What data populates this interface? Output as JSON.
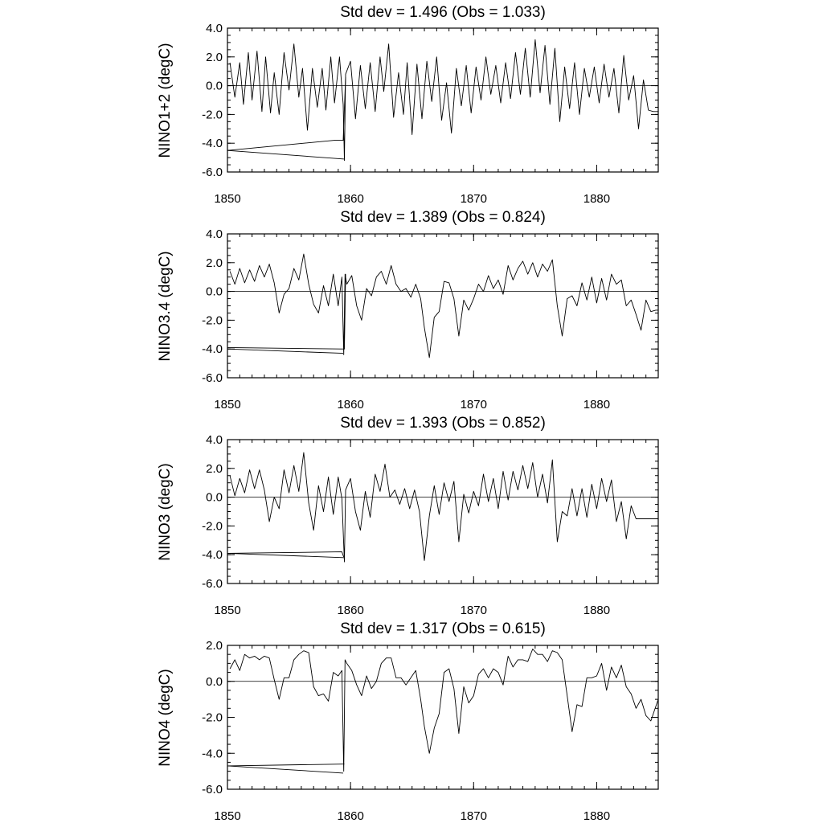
{
  "chart_data": [
    {
      "type": "line",
      "title": "Std dev = 1.496 (Obs = 1.033)",
      "ylabel": "NINO1+2 (degC)",
      "xlim": [
        1850,
        1885
      ],
      "ylim": [
        -6.0,
        4.0
      ],
      "x_ticks": [
        1850,
        1860,
        1870,
        1880
      ],
      "x_tick_labels": [
        "1850",
        "1860",
        "1870",
        "1880"
      ],
      "y_ticks": [
        4.0,
        2.0,
        0.0,
        -2.0,
        -4.0,
        -6.0
      ],
      "y_tick_labels": [
        "4.0",
        "2.0",
        "0.0",
        "-2.0",
        "-4.0",
        "-6.0"
      ],
      "zero_line": 0,
      "series": [
        {
          "x": [
            1850.2,
            1850.6,
            1851.0,
            1851.3,
            1851.7,
            1852.0,
            1852.4,
            1852.8,
            1853.1,
            1853.5,
            1853.8,
            1854.2,
            1854.6,
            1855.0,
            1855.4,
            1855.8,
            1856.1,
            1856.5,
            1856.9,
            1857.3,
            1857.7,
            1858.0,
            1858.4,
            1858.7,
            1859.1,
            1859.4,
            1859.5,
            1859.6,
            1860.0,
            1860.4,
            1860.8,
            1861.2,
            1861.6,
            1862.0,
            1862.4,
            1862.7,
            1863.1,
            1863.5,
            1863.9,
            1864.3,
            1864.6,
            1865.0,
            1865.4,
            1865.8,
            1866.2,
            1866.6,
            1867.0,
            1867.4,
            1867.8,
            1868.2,
            1868.6,
            1869.0,
            1869.4,
            1869.8,
            1870.2,
            1870.6,
            1871.0,
            1871.4,
            1871.8,
            1872.2,
            1872.6,
            1873.0,
            1873.4,
            1873.8,
            1874.2,
            1874.6,
            1875.0,
            1875.4,
            1875.8,
            1876.2,
            1876.6,
            1877.0,
            1877.4,
            1877.8,
            1878.2,
            1878.6,
            1879.0,
            1879.4,
            1879.8,
            1880.2,
            1880.6,
            1881.0,
            1881.4,
            1881.8,
            1882.2,
            1882.6,
            1883.0,
            1883.4,
            1883.8,
            1884.2,
            1884.6,
            1885.0
          ],
          "y": [
            1.6,
            -0.8,
            1.6,
            -1.3,
            2.3,
            -1.0,
            2.4,
            -1.8,
            2.0,
            -1.9,
            0.9,
            -2.0,
            2.3,
            -0.3,
            2.9,
            -0.8,
            1.2,
            -3.1,
            1.2,
            -1.5,
            1.2,
            -1.7,
            2.0,
            -1.2,
            2.0,
            -1.3,
            -5.2,
            0.8,
            1.7,
            -2.3,
            1.4,
            -1.6,
            1.6,
            -1.8,
            2.0,
            -0.4,
            2.9,
            -2.2,
            0.9,
            -2.0,
            1.6,
            -3.4,
            1.5,
            -2.3,
            1.7,
            -1.1,
            2.0,
            -2.4,
            0.2,
            -3.3,
            1.2,
            -1.4,
            1.4,
            -1.9,
            1.3,
            -1.0,
            2.0,
            -0.6,
            1.4,
            -1.2,
            1.6,
            -0.9,
            2.3,
            -0.6,
            2.6,
            -0.8,
            3.2,
            -0.5,
            2.8,
            -1.3,
            2.6,
            -2.5,
            1.3,
            -1.6,
            1.6,
            -2.0,
            1.2,
            -0.8,
            1.3,
            -1.2,
            1.5,
            -0.8,
            1.2,
            -1.9,
            2.1,
            -1.0,
            0.7,
            -3.0,
            0.4,
            -1.7,
            -1.8,
            -1.8
          ]
        },
        {
          "x": [
            1850.0,
            1858.7,
            1859.4,
            1859.6
          ],
          "y": [
            -4.5,
            -3.8,
            -3.8,
            0.6
          ]
        },
        {
          "x": [
            1850.0,
            1859.5
          ],
          "y": [
            -4.5,
            -5.1
          ]
        }
      ]
    },
    {
      "type": "line",
      "title": "Std dev = 1.389 (Obs = 0.824)",
      "ylabel": "NINO3.4 (degC)",
      "xlim": [
        1850,
        1885
      ],
      "ylim": [
        -6.0,
        4.0
      ],
      "x_ticks": [
        1850,
        1860,
        1870,
        1880
      ],
      "x_tick_labels": [
        "1850",
        "1860",
        "1870",
        "1880"
      ],
      "y_ticks": [
        4.0,
        2.0,
        0.0,
        -2.0,
        -4.0,
        -6.0
      ],
      "y_tick_labels": [
        "4.0",
        "2.0",
        "0.0",
        "-2.0",
        "-4.0",
        "-6.0"
      ],
      "zero_line": 0,
      "series": [
        {
          "x": [
            1850.2,
            1850.6,
            1851.0,
            1851.4,
            1851.8,
            1852.2,
            1852.6,
            1853.0,
            1853.4,
            1853.8,
            1854.2,
            1854.6,
            1855.0,
            1855.4,
            1855.8,
            1856.2,
            1856.6,
            1857.0,
            1857.4,
            1857.8,
            1858.2,
            1858.6,
            1859.0,
            1859.3,
            1859.45,
            1859.55,
            1859.7,
            1860.1,
            1860.5,
            1860.9,
            1861.3,
            1861.7,
            1862.1,
            1862.5,
            1862.9,
            1863.3,
            1863.7,
            1864.1,
            1864.5,
            1864.9,
            1865.3,
            1865.7,
            1866.0,
            1866.4,
            1866.8,
            1867.2,
            1867.6,
            1868.0,
            1868.4,
            1868.8,
            1869.2,
            1869.6,
            1870.0,
            1870.4,
            1870.8,
            1871.2,
            1871.6,
            1872.0,
            1872.4,
            1872.8,
            1873.2,
            1873.6,
            1874.0,
            1874.4,
            1874.8,
            1875.2,
            1875.6,
            1876.0,
            1876.4,
            1876.8,
            1877.2,
            1877.6,
            1878.0,
            1878.4,
            1878.8,
            1879.2,
            1879.6,
            1880.0,
            1880.4,
            1880.8,
            1881.2,
            1881.6,
            1882.0,
            1882.4,
            1882.8,
            1883.2,
            1883.6,
            1884.0,
            1884.4,
            1884.8,
            1885.0
          ],
          "y": [
            1.4,
            0.5,
            1.6,
            0.6,
            1.5,
            0.7,
            1.8,
            1.0,
            1.9,
            0.6,
            -1.5,
            -0.2,
            0.2,
            1.6,
            0.8,
            2.6,
            0.5,
            -0.9,
            -1.5,
            0.4,
            -1.0,
            1.2,
            -1.0,
            1.0,
            -4.4,
            1.2,
            0.5,
            1.1,
            -1.0,
            -2.0,
            0.2,
            -0.3,
            1.0,
            1.4,
            0.5,
            1.8,
            0.5,
            0.0,
            0.2,
            -0.4,
            0.5,
            -0.5,
            -2.5,
            -4.6,
            -1.8,
            -1.4,
            0.7,
            0.6,
            -0.5,
            -3.1,
            -0.6,
            -1.3,
            -0.5,
            0.5,
            0.0,
            1.1,
            0.2,
            0.8,
            -0.2,
            1.8,
            0.8,
            1.6,
            2.1,
            1.2,
            2.0,
            1.0,
            1.9,
            1.4,
            2.2,
            -1.0,
            -3.1,
            -0.5,
            -0.3,
            -1.0,
            0.6,
            -0.6,
            1.0,
            -0.8,
            0.9,
            -0.6,
            1.2,
            0.5,
            0.8,
            -1.0,
            -0.6,
            -1.6,
            -2.7,
            -0.6,
            -1.4,
            -1.3,
            -1.3
          ]
        },
        {
          "x": [
            1850.0,
            1859.2,
            1859.5,
            1859.6
          ],
          "y": [
            -3.9,
            -4.0,
            -4.0,
            1.2
          ]
        },
        {
          "x": [
            1850.0,
            1859.4
          ],
          "y": [
            -4.0,
            -4.3
          ]
        }
      ]
    },
    {
      "type": "line",
      "title": "Std dev = 1.393 (Obs = 0.852)",
      "ylabel": "NINO3 (degC)",
      "xlim": [
        1850,
        1885
      ],
      "ylim": [
        -6.0,
        4.0
      ],
      "x_ticks": [
        1850,
        1860,
        1870,
        1880
      ],
      "x_tick_labels": [
        "1850",
        "1860",
        "1870",
        "1880"
      ],
      "y_ticks": [
        4.0,
        2.0,
        0.0,
        -2.0,
        -4.0,
        -6.0
      ],
      "y_tick_labels": [
        "4.0",
        "2.0",
        "0.0",
        "-2.0",
        "-4.0",
        "-6.0"
      ],
      "zero_line": 0,
      "series": [
        {
          "x": [
            1850.2,
            1850.6,
            1851.0,
            1851.4,
            1851.8,
            1852.2,
            1852.6,
            1853.0,
            1853.4,
            1853.8,
            1854.2,
            1854.6,
            1855.0,
            1855.4,
            1855.8,
            1856.2,
            1856.6,
            1857.0,
            1857.4,
            1857.8,
            1858.2,
            1858.6,
            1859.0,
            1859.3,
            1859.5,
            1859.6,
            1860.0,
            1860.4,
            1860.8,
            1861.2,
            1861.6,
            1862.0,
            1862.4,
            1862.8,
            1863.2,
            1863.6,
            1864.0,
            1864.4,
            1864.8,
            1865.2,
            1865.6,
            1866.0,
            1866.4,
            1866.8,
            1867.2,
            1867.6,
            1868.0,
            1868.4,
            1868.8,
            1869.2,
            1869.6,
            1870.0,
            1870.4,
            1870.8,
            1871.2,
            1871.6,
            1872.0,
            1872.4,
            1872.8,
            1873.2,
            1873.6,
            1874.0,
            1874.4,
            1874.8,
            1875.2,
            1875.6,
            1876.0,
            1876.4,
            1876.8,
            1877.2,
            1877.6,
            1878.0,
            1878.4,
            1878.8,
            1879.2,
            1879.6,
            1880.0,
            1880.4,
            1880.8,
            1881.2,
            1881.6,
            1882.0,
            1882.4,
            1882.8,
            1883.2,
            1883.6,
            1884.0,
            1884.4,
            1884.8,
            1885.0
          ],
          "y": [
            1.5,
            0.1,
            1.3,
            0.3,
            1.9,
            0.6,
            1.9,
            0.5,
            -1.7,
            0.0,
            -0.8,
            1.9,
            0.3,
            2.2,
            0.4,
            3.1,
            -0.4,
            -2.3,
            0.8,
            -1.0,
            1.4,
            -1.2,
            1.4,
            -0.1,
            -4.5,
            0.5,
            1.3,
            -1.0,
            -2.3,
            0.4,
            -1.4,
            1.6,
            0.4,
            2.3,
            0.0,
            0.5,
            -0.5,
            0.6,
            -0.8,
            0.5,
            -1.0,
            -4.4,
            -1.3,
            0.8,
            -1.2,
            1.0,
            -0.3,
            1.1,
            -3.1,
            0.2,
            -1.1,
            0.4,
            -0.6,
            1.6,
            -0.3,
            1.3,
            -0.8,
            1.8,
            -0.2,
            1.8,
            0.5,
            2.2,
            0.6,
            2.4,
            0.0,
            1.6,
            -0.4,
            2.6,
            -3.1,
            -1.0,
            -1.3,
            0.6,
            -1.3,
            0.6,
            -1.4,
            0.9,
            -0.8,
            1.3,
            -0.3,
            1.2,
            -1.7,
            -0.3,
            -2.9,
            -0.6,
            -1.5,
            -1.5,
            -1.5,
            -1.5,
            -1.5,
            -1.5
          ]
        },
        {
          "x": [
            1850.0,
            1859.3,
            1859.5
          ],
          "y": [
            -3.9,
            -3.8,
            -4.3
          ]
        },
        {
          "x": [
            1850.0,
            1859.4
          ],
          "y": [
            -3.9,
            -4.2
          ]
        }
      ]
    },
    {
      "type": "line",
      "title": "Std dev = 1.317 (Obs = 0.615)",
      "ylabel": "NINO4 (degC)",
      "xlim": [
        1850,
        1885
      ],
      "ylim": [
        -6.0,
        2.0
      ],
      "x_ticks": [
        1850,
        1860,
        1870,
        1880
      ],
      "x_tick_labels": [
        "1850",
        "1860",
        "1870",
        "1880"
      ],
      "y_ticks": [
        2.0,
        0.0,
        -2.0,
        -4.0,
        -6.0
      ],
      "y_tick_labels": [
        "2.0",
        "0.0",
        "-2.0",
        "-4.0",
        "-6.0"
      ],
      "zero_line": 0,
      "series": [
        {
          "x": [
            1850.2,
            1850.6,
            1851.0,
            1851.4,
            1851.8,
            1852.2,
            1852.6,
            1853.0,
            1853.4,
            1853.8,
            1854.2,
            1854.6,
            1855.0,
            1855.4,
            1855.8,
            1856.2,
            1856.6,
            1857.0,
            1857.4,
            1857.8,
            1858.2,
            1858.6,
            1859.0,
            1859.3,
            1859.45,
            1859.55,
            1859.7,
            1860.1,
            1860.5,
            1860.9,
            1861.3,
            1861.7,
            1862.1,
            1862.5,
            1862.9,
            1863.3,
            1863.7,
            1864.1,
            1864.5,
            1864.9,
            1865.3,
            1865.7,
            1866.0,
            1866.4,
            1866.8,
            1867.2,
            1867.6,
            1868.0,
            1868.4,
            1868.8,
            1869.2,
            1869.6,
            1870.0,
            1870.4,
            1870.8,
            1871.2,
            1871.6,
            1872.0,
            1872.4,
            1872.8,
            1873.2,
            1873.6,
            1874.0,
            1874.4,
            1874.8,
            1875.2,
            1875.6,
            1876.0,
            1876.4,
            1876.8,
            1877.2,
            1877.6,
            1878.0,
            1878.4,
            1878.8,
            1879.2,
            1879.6,
            1880.0,
            1880.4,
            1880.8,
            1881.2,
            1881.6,
            1882.0,
            1882.4,
            1882.8,
            1883.2,
            1883.6,
            1884.0,
            1884.4,
            1884.8,
            1885.0
          ],
          "y": [
            0.7,
            1.2,
            0.6,
            1.5,
            1.3,
            1.4,
            1.2,
            1.4,
            1.3,
            0.1,
            -1.0,
            0.2,
            0.2,
            1.2,
            1.5,
            1.7,
            1.6,
            -0.3,
            -0.8,
            -0.7,
            -1.1,
            0.5,
            0.3,
            0.6,
            -5.0,
            1.2,
            1.0,
            0.6,
            -0.2,
            -0.8,
            0.3,
            -0.4,
            0.0,
            1.0,
            1.3,
            1.3,
            0.2,
            0.2,
            -0.2,
            0.2,
            0.6,
            -1.0,
            -2.5,
            -4.0,
            -2.6,
            -1.8,
            0.5,
            0.7,
            -0.4,
            -2.9,
            -0.3,
            -1.2,
            -0.8,
            0.4,
            0.7,
            0.2,
            0.7,
            0.5,
            -0.2,
            1.4,
            0.8,
            1.2,
            1.2,
            1.1,
            1.8,
            1.5,
            1.5,
            1.1,
            1.7,
            1.6,
            1.2,
            -0.8,
            -2.8,
            -1.3,
            -1.4,
            0.2,
            0.2,
            0.3,
            1.0,
            -0.5,
            0.8,
            0.2,
            0.9,
            -0.3,
            -0.7,
            -1.5,
            -1.0,
            -1.9,
            -2.2,
            -1.4,
            -1.0
          ]
        },
        {
          "x": [
            1850.0,
            1859.4,
            1859.5
          ],
          "y": [
            -4.7,
            -4.6,
            -4.6
          ]
        },
        {
          "x": [
            1850.0,
            1859.4
          ],
          "y": [
            -4.7,
            -5.1
          ]
        }
      ]
    }
  ]
}
